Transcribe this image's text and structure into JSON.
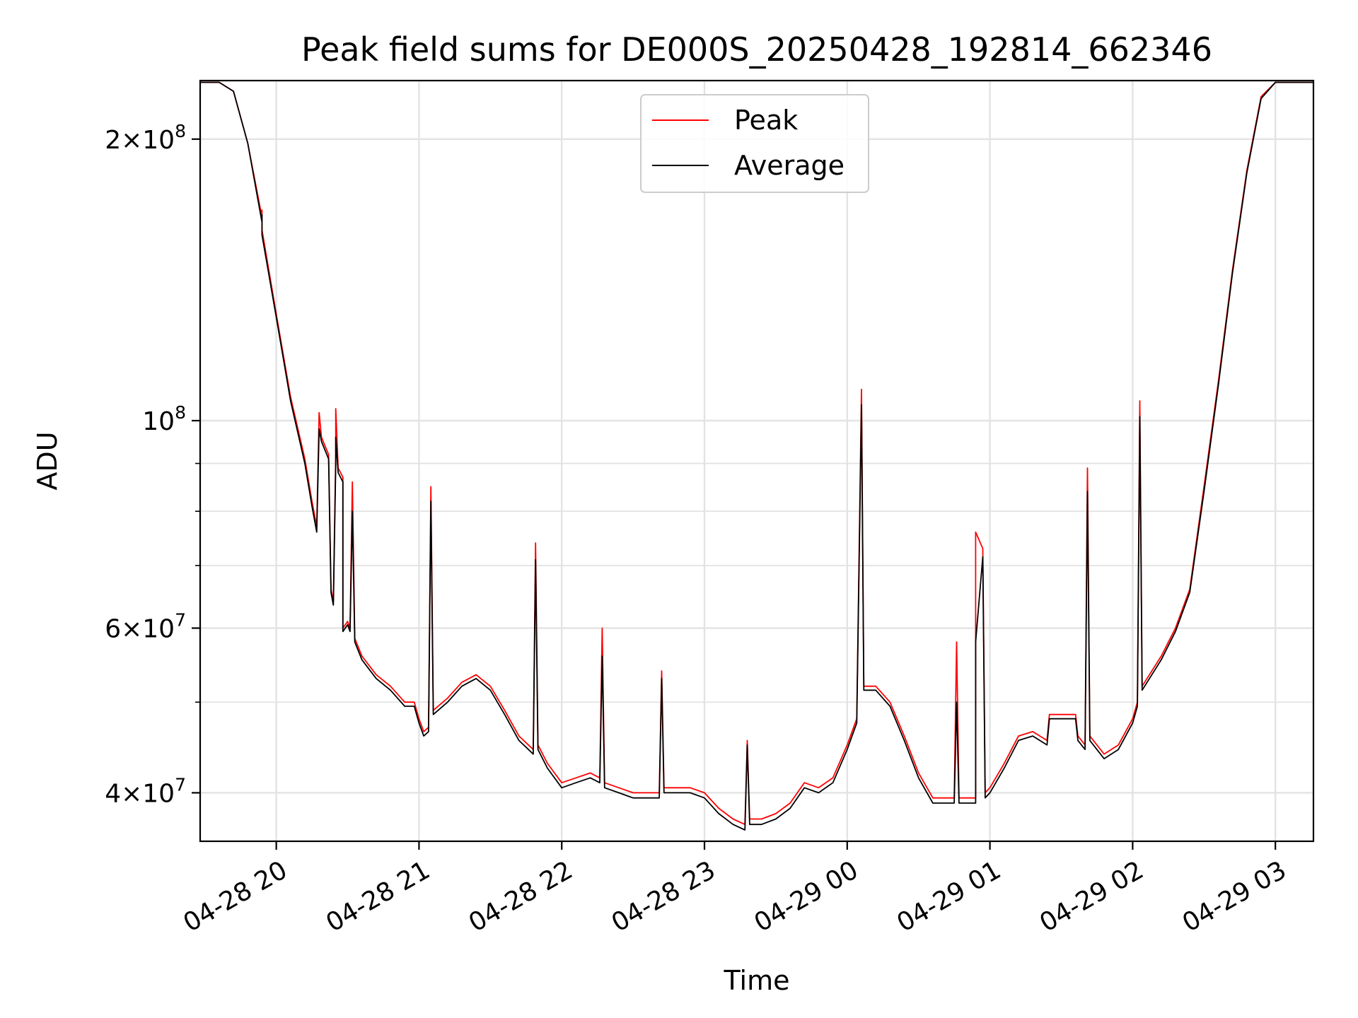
{
  "chart_data": {
    "type": "line",
    "title": "Peak field sums for DE000S_20250428_192814_662346",
    "xlabel": "Time",
    "ylabel": "ADU",
    "scale_y": "log",
    "grid": true,
    "legend_position": "upper center",
    "xlim": [
      "2025-04-28 19:28",
      "2025-04-29 03:16"
    ],
    "ylim": [
      35500000,
      231000000
    ],
    "x_ticks": [
      {
        "value": "2025-04-28 20:00",
        "label": "04-28 20"
      },
      {
        "value": "2025-04-28 21:00",
        "label": "04-28 21"
      },
      {
        "value": "2025-04-28 22:00",
        "label": "04-28 22"
      },
      {
        "value": "2025-04-28 23:00",
        "label": "04-28 23"
      },
      {
        "value": "2025-04-29 00:00",
        "label": "04-29 00"
      },
      {
        "value": "2025-04-29 01:00",
        "label": "04-29 01"
      },
      {
        "value": "2025-04-29 02:00",
        "label": "04-29 02"
      },
      {
        "value": "2025-04-29 03:00",
        "label": "04-29 03"
      }
    ],
    "y_ticks": [
      {
        "value": 40000000,
        "base": "4",
        "exp": "7"
      },
      {
        "value": 60000000,
        "base": "6",
        "exp": "7"
      },
      {
        "value": 100000000,
        "base": "",
        "exp": "8"
      },
      {
        "value": 200000000,
        "base": "2",
        "exp": "8"
      }
    ],
    "y_minor_ticks": [
      50000000,
      70000000,
      80000000,
      90000000
    ],
    "series": [
      {
        "name": "Peak",
        "color": "#ff0000",
        "points": [
          [
            "2025-04-28 19:28",
            230000000
          ],
          [
            "2025-04-28 19:36",
            230000000
          ],
          [
            "2025-04-28 19:42",
            225000000
          ],
          [
            "2025-04-28 19:48",
            198000000
          ],
          [
            "2025-04-28 19:54",
            165000000
          ],
          [
            "2025-04-28 19:54",
            168000000
          ],
          [
            "2025-04-28 19:54",
            160000000
          ],
          [
            "2025-04-28 20:00",
            130000000
          ],
          [
            "2025-04-28 20:06",
            106000000
          ],
          [
            "2025-04-28 20:12",
            91000000
          ],
          [
            "2025-04-28 20:15",
            82000000
          ],
          [
            "2025-04-28 20:17",
            77000000
          ],
          [
            "2025-04-28 20:18",
            102000000
          ],
          [
            "2025-04-28 20:19",
            96000000
          ],
          [
            "2025-04-28 20:22",
            92000000
          ],
          [
            "2025-04-28 20:23",
            66000000
          ],
          [
            "2025-04-28 20:24",
            64000000
          ],
          [
            "2025-04-28 20:25",
            92000000
          ],
          [
            "2025-04-28 20:25",
            103000000
          ],
          [
            "2025-04-28 20:26",
            89000000
          ],
          [
            "2025-04-28 20:28",
            87000000
          ],
          [
            "2025-04-28 20:28",
            60000000
          ],
          [
            "2025-04-28 20:30",
            61000000
          ],
          [
            "2025-04-28 20:31",
            60000000
          ],
          [
            "2025-04-28 20:32",
            86000000
          ],
          [
            "2025-04-28 20:33",
            58500000
          ],
          [
            "2025-04-28 20:36",
            56000000
          ],
          [
            "2025-04-28 20:42",
            53500000
          ],
          [
            "2025-04-28 20:48",
            52000000
          ],
          [
            "2025-04-28 20:54",
            50000000
          ],
          [
            "2025-04-28 20:58",
            50000000
          ],
          [
            "2025-04-28 21:00",
            48000000
          ],
          [
            "2025-04-28 21:02",
            46500000
          ],
          [
            "2025-04-28 21:04",
            47000000
          ],
          [
            "2025-04-28 21:05",
            85000000
          ],
          [
            "2025-04-28 21:06",
            49000000
          ],
          [
            "2025-04-28 21:12",
            50500000
          ],
          [
            "2025-04-28 21:18",
            52500000
          ],
          [
            "2025-04-28 21:24",
            53500000
          ],
          [
            "2025-04-28 21:30",
            52000000
          ],
          [
            "2025-04-28 21:36",
            49000000
          ],
          [
            "2025-04-28 21:42",
            46000000
          ],
          [
            "2025-04-28 21:48",
            44500000
          ],
          [
            "2025-04-28 21:49",
            74000000
          ],
          [
            "2025-04-28 21:50",
            45000000
          ],
          [
            "2025-04-28 21:54",
            43000000
          ],
          [
            "2025-04-28 22:00",
            41000000
          ],
          [
            "2025-04-28 22:06",
            41500000
          ],
          [
            "2025-04-28 22:12",
            42000000
          ],
          [
            "2025-04-28 22:16",
            41500000
          ],
          [
            "2025-04-28 22:17",
            60000000
          ],
          [
            "2025-04-28 22:18",
            41000000
          ],
          [
            "2025-04-28 22:24",
            40500000
          ],
          [
            "2025-04-28 22:30",
            40000000
          ],
          [
            "2025-04-28 22:36",
            40000000
          ],
          [
            "2025-04-28 22:41",
            40000000
          ],
          [
            "2025-04-28 22:42",
            54000000
          ],
          [
            "2025-04-28 22:43",
            40500000
          ],
          [
            "2025-04-28 22:48",
            40500000
          ],
          [
            "2025-04-28 22:54",
            40500000
          ],
          [
            "2025-04-28 23:00",
            40000000
          ],
          [
            "2025-04-28 23:06",
            38500000
          ],
          [
            "2025-04-28 23:12",
            37500000
          ],
          [
            "2025-04-28 23:17",
            37000000
          ],
          [
            "2025-04-28 23:18",
            45500000
          ],
          [
            "2025-04-28 23:19",
            37500000
          ],
          [
            "2025-04-28 23:24",
            37500000
          ],
          [
            "2025-04-28 23:30",
            38000000
          ],
          [
            "2025-04-28 23:36",
            39000000
          ],
          [
            "2025-04-28 23:42",
            41000000
          ],
          [
            "2025-04-28 23:48",
            40500000
          ],
          [
            "2025-04-28 23:54",
            41500000
          ],
          [
            "2025-04-29 00:00",
            45000000
          ],
          [
            "2025-04-29 00:04",
            48000000
          ],
          [
            "2025-04-29 00:06",
            108000000
          ],
          [
            "2025-04-29 00:07",
            52000000
          ],
          [
            "2025-04-29 00:12",
            52000000
          ],
          [
            "2025-04-29 00:18",
            50000000
          ],
          [
            "2025-04-29 00:24",
            46000000
          ],
          [
            "2025-04-29 00:30",
            42000000
          ],
          [
            "2025-04-29 00:36",
            39500000
          ],
          [
            "2025-04-29 00:42",
            39500000
          ],
          [
            "2025-04-29 00:45",
            39500000
          ],
          [
            "2025-04-29 00:46",
            58000000
          ],
          [
            "2025-04-29 00:47",
            39500000
          ],
          [
            "2025-04-29 00:54",
            39500000
          ],
          [
            "2025-04-29 00:54",
            76000000
          ],
          [
            "2025-04-29 00:57",
            73000000
          ],
          [
            "2025-04-29 00:58",
            40000000
          ],
          [
            "2025-04-29 01:00",
            40500000
          ],
          [
            "2025-04-29 01:06",
            43000000
          ],
          [
            "2025-04-29 01:12",
            46000000
          ],
          [
            "2025-04-29 01:18",
            46500000
          ],
          [
            "2025-04-29 01:24",
            45500000
          ],
          [
            "2025-04-29 01:25",
            48500000
          ],
          [
            "2025-04-29 01:36",
            48500000
          ],
          [
            "2025-04-29 01:37",
            46000000
          ],
          [
            "2025-04-29 01:40",
            45000000
          ],
          [
            "2025-04-29 01:41",
            89000000
          ],
          [
            "2025-04-29 01:42",
            46000000
          ],
          [
            "2025-04-29 01:48",
            44000000
          ],
          [
            "2025-04-29 01:54",
            45000000
          ],
          [
            "2025-04-29 02:00",
            48000000
          ],
          [
            "2025-04-29 02:02",
            50000000
          ],
          [
            "2025-04-29 02:03",
            105000000
          ],
          [
            "2025-04-29 02:04",
            52000000
          ],
          [
            "2025-04-29 02:12",
            56000000
          ],
          [
            "2025-04-29 02:18",
            60000000
          ],
          [
            "2025-04-29 02:24",
            66000000
          ],
          [
            "2025-04-29 02:30",
            85000000
          ],
          [
            "2025-04-29 02:36",
            110000000
          ],
          [
            "2025-04-29 02:42",
            145000000
          ],
          [
            "2025-04-29 02:48",
            185000000
          ],
          [
            "2025-04-29 02:54",
            222000000
          ],
          [
            "2025-04-29 03:00",
            230000000
          ],
          [
            "2025-04-29 03:16",
            230000000
          ]
        ]
      },
      {
        "name": "Average",
        "color": "#000000",
        "points": [
          [
            "2025-04-28 19:28",
            230000000
          ],
          [
            "2025-04-28 19:36",
            230000000
          ],
          [
            "2025-04-28 19:42",
            225000000
          ],
          [
            "2025-04-28 19:48",
            198000000
          ],
          [
            "2025-04-28 19:54",
            163000000
          ],
          [
            "2025-04-28 19:54",
            166000000
          ],
          [
            "2025-04-28 19:54",
            158000000
          ],
          [
            "2025-04-28 20:00",
            129000000
          ],
          [
            "2025-04-28 20:06",
            105000000
          ],
          [
            "2025-04-28 20:12",
            90000000
          ],
          [
            "2025-04-28 20:15",
            81000000
          ],
          [
            "2025-04-28 20:17",
            76000000
          ],
          [
            "2025-04-28 20:18",
            98000000
          ],
          [
            "2025-04-28 20:19",
            95000000
          ],
          [
            "2025-04-28 20:22",
            91000000
          ],
          [
            "2025-04-28 20:23",
            65500000
          ],
          [
            "2025-04-28 20:24",
            63500000
          ],
          [
            "2025-04-28 20:25",
            90000000
          ],
          [
            "2025-04-28 20:25",
            96000000
          ],
          [
            "2025-04-28 20:26",
            88000000
          ],
          [
            "2025-04-28 20:28",
            86000000
          ],
          [
            "2025-04-28 20:28",
            59500000
          ],
          [
            "2025-04-28 20:30",
            60500000
          ],
          [
            "2025-04-28 20:31",
            59500000
          ],
          [
            "2025-04-28 20:32",
            80000000
          ],
          [
            "2025-04-28 20:33",
            58000000
          ],
          [
            "2025-04-28 20:36",
            55500000
          ],
          [
            "2025-04-28 20:42",
            53000000
          ],
          [
            "2025-04-28 20:48",
            51500000
          ],
          [
            "2025-04-28 20:54",
            49500000
          ],
          [
            "2025-04-28 20:58",
            49500000
          ],
          [
            "2025-04-28 21:00",
            47500000
          ],
          [
            "2025-04-28 21:02",
            46000000
          ],
          [
            "2025-04-28 21:04",
            46500000
          ],
          [
            "2025-04-28 21:05",
            82000000
          ],
          [
            "2025-04-28 21:06",
            48500000
          ],
          [
            "2025-04-28 21:12",
            50000000
          ],
          [
            "2025-04-28 21:18",
            52000000
          ],
          [
            "2025-04-28 21:24",
            53000000
          ],
          [
            "2025-04-28 21:30",
            51500000
          ],
          [
            "2025-04-28 21:36",
            48500000
          ],
          [
            "2025-04-28 21:42",
            45500000
          ],
          [
            "2025-04-28 21:48",
            44000000
          ],
          [
            "2025-04-28 21:49",
            71000000
          ],
          [
            "2025-04-28 21:50",
            44500000
          ],
          [
            "2025-04-28 21:54",
            42500000
          ],
          [
            "2025-04-28 22:00",
            40500000
          ],
          [
            "2025-04-28 22:06",
            41000000
          ],
          [
            "2025-04-28 22:12",
            41500000
          ],
          [
            "2025-04-28 22:16",
            41000000
          ],
          [
            "2025-04-28 22:17",
            56000000
          ],
          [
            "2025-04-28 22:18",
            40500000
          ],
          [
            "2025-04-28 22:24",
            40000000
          ],
          [
            "2025-04-28 22:30",
            39500000
          ],
          [
            "2025-04-28 22:36",
            39500000
          ],
          [
            "2025-04-28 22:41",
            39500000
          ],
          [
            "2025-04-28 22:42",
            53000000
          ],
          [
            "2025-04-28 22:43",
            40000000
          ],
          [
            "2025-04-28 22:48",
            40000000
          ],
          [
            "2025-04-28 22:54",
            40000000
          ],
          [
            "2025-04-28 23:00",
            39500000
          ],
          [
            "2025-04-28 23:06",
            38000000
          ],
          [
            "2025-04-28 23:12",
            37000000
          ],
          [
            "2025-04-28 23:17",
            36500000
          ],
          [
            "2025-04-28 23:18",
            45000000
          ],
          [
            "2025-04-28 23:19",
            37000000
          ],
          [
            "2025-04-28 23:24",
            37000000
          ],
          [
            "2025-04-28 23:30",
            37500000
          ],
          [
            "2025-04-28 23:36",
            38500000
          ],
          [
            "2025-04-28 23:42",
            40500000
          ],
          [
            "2025-04-28 23:48",
            40000000
          ],
          [
            "2025-04-28 23:54",
            41000000
          ],
          [
            "2025-04-29 00:00",
            44500000
          ],
          [
            "2025-04-29 00:04",
            47500000
          ],
          [
            "2025-04-29 00:06",
            104000000
          ],
          [
            "2025-04-29 00:07",
            51500000
          ],
          [
            "2025-04-29 00:12",
            51500000
          ],
          [
            "2025-04-29 00:18",
            49500000
          ],
          [
            "2025-04-29 00:24",
            45500000
          ],
          [
            "2025-04-29 00:30",
            41500000
          ],
          [
            "2025-04-29 00:36",
            39000000
          ],
          [
            "2025-04-29 00:42",
            39000000
          ],
          [
            "2025-04-29 00:45",
            39000000
          ],
          [
            "2025-04-29 00:46",
            50000000
          ],
          [
            "2025-04-29 00:47",
            39000000
          ],
          [
            "2025-04-29 00:54",
            39000000
          ],
          [
            "2025-04-29 00:54",
            58000000
          ],
          [
            "2025-04-29 00:57",
            71500000
          ],
          [
            "2025-04-29 00:58",
            39500000
          ],
          [
            "2025-04-29 01:00",
            40000000
          ],
          [
            "2025-04-29 01:06",
            42500000
          ],
          [
            "2025-04-29 01:12",
            45500000
          ],
          [
            "2025-04-29 01:18",
            46000000
          ],
          [
            "2025-04-29 01:24",
            45000000
          ],
          [
            "2025-04-29 01:25",
            48000000
          ],
          [
            "2025-04-29 01:36",
            48000000
          ],
          [
            "2025-04-29 01:37",
            45500000
          ],
          [
            "2025-04-29 01:40",
            44500000
          ],
          [
            "2025-04-29 01:41",
            84000000
          ],
          [
            "2025-04-29 01:42",
            45500000
          ],
          [
            "2025-04-29 01:48",
            43500000
          ],
          [
            "2025-04-29 01:54",
            44500000
          ],
          [
            "2025-04-29 02:00",
            47500000
          ],
          [
            "2025-04-29 02:02",
            49500000
          ],
          [
            "2025-04-29 02:03",
            101000000
          ],
          [
            "2025-04-29 02:04",
            51500000
          ],
          [
            "2025-04-29 02:12",
            55500000
          ],
          [
            "2025-04-29 02:18",
            59500000
          ],
          [
            "2025-04-29 02:24",
            65500000
          ],
          [
            "2025-04-29 02:30",
            84000000
          ],
          [
            "2025-04-29 02:36",
            109000000
          ],
          [
            "2025-04-29 02:42",
            144000000
          ],
          [
            "2025-04-29 02:48",
            184000000
          ],
          [
            "2025-04-29 02:54",
            221000000
          ],
          [
            "2025-04-29 03:00",
            230000000
          ],
          [
            "2025-04-29 03:16",
            230000000
          ]
        ]
      }
    ]
  }
}
